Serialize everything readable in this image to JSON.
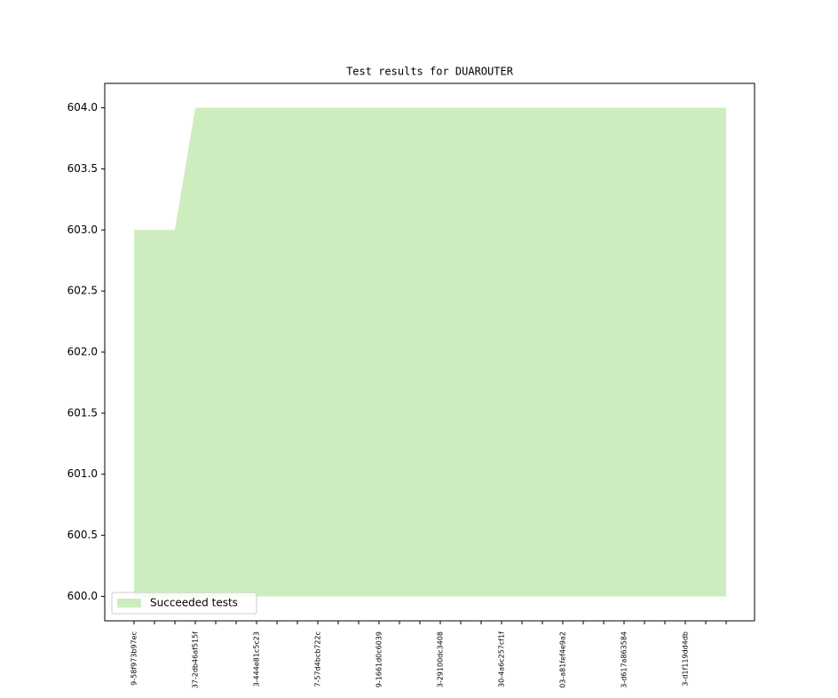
{
  "chart_data": {
    "type": "area",
    "title": "Test results for DUAROUTER",
    "categories": [
      "9-58f973b97ec",
      null,
      null,
      "37-2db46af515f",
      null,
      null,
      "3-444e81c5c23",
      null,
      null,
      "7-57d4bcb722c",
      null,
      null,
      "9-1661d0c6039",
      null,
      null,
      "3-29100dc3408",
      null,
      null,
      "30-4a6c257cf1f",
      null,
      null,
      "03-a81fef4e9a2",
      null,
      null,
      "3-d617a863584",
      null,
      null,
      "3-d1f119dd4db",
      null,
      null
    ],
    "series": [
      {
        "name": "Succeeded tests",
        "color": "#cdedbe",
        "values": [
          603,
          603,
          603,
          604,
          604,
          604,
          604,
          604,
          604,
          604,
          604,
          604,
          604,
          604,
          604,
          604,
          604,
          604,
          604,
          604,
          604,
          604,
          604,
          604,
          604,
          604,
          604,
          604,
          604,
          604
        ]
      }
    ],
    "baseline": 600,
    "ylim": [
      599.8,
      604.2
    ],
    "yticks": [
      {
        "value": 600,
        "label": "600.0"
      },
      {
        "value": 600.5,
        "label": "600.5"
      },
      {
        "value": 601,
        "label": "601.0"
      },
      {
        "value": 601.5,
        "label": "601.5"
      },
      {
        "value": 602,
        "label": "602.0"
      },
      {
        "value": 602.5,
        "label": "602.5"
      },
      {
        "value": 603,
        "label": "603.0"
      },
      {
        "value": 603.5,
        "label": "603.5"
      },
      {
        "value": 604,
        "label": "604.0"
      }
    ],
    "legend": "lower left"
  }
}
